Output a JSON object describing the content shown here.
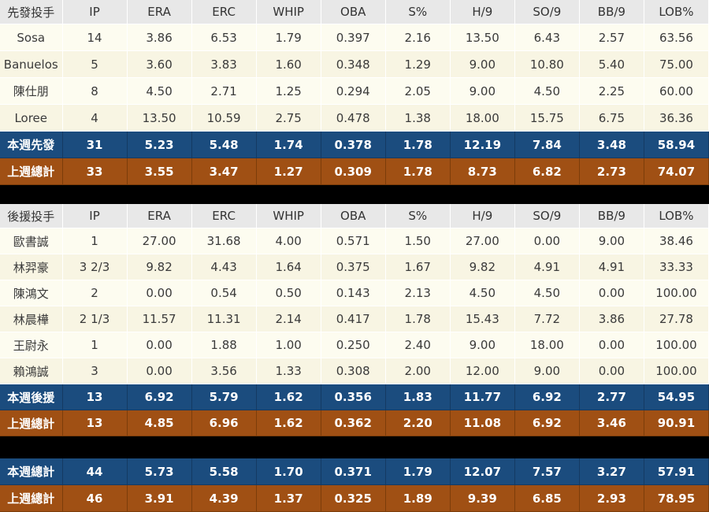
{
  "colors": {
    "header_bg": "#E8E8E8",
    "player_row_bg": "#FDFCF0",
    "player_row_bg_alt": "#F8F5E3",
    "current_week_row_bg": "#1B4C7E",
    "previous_week_row_bg": "#A05014",
    "separator_band": "#000000",
    "text_dark": "#3A3A3A",
    "text_light": "#FFFFFF"
  },
  "chart_data": [
    {
      "type": "table",
      "title": "先發投手",
      "columns": [
        "IP",
        "ERA",
        "ERC",
        "WHIP",
        "OBA",
        "S%",
        "H/9",
        "SO/9",
        "BB/9",
        "LOB%"
      ],
      "legend_position": "none",
      "grid": true,
      "rows": [
        {
          "type": "player",
          "label": "Sosa",
          "values": [
            "14",
            "3.86",
            "6.53",
            "1.79",
            "0.397",
            "2.16",
            "13.50",
            "6.43",
            "2.57",
            "63.56"
          ]
        },
        {
          "type": "player",
          "label": "Banuelos",
          "values": [
            "5",
            "3.60",
            "3.83",
            "1.60",
            "0.348",
            "1.29",
            "9.00",
            "10.80",
            "5.40",
            "75.00"
          ]
        },
        {
          "type": "player",
          "label": "陳仕朋",
          "values": [
            "8",
            "4.50",
            "2.71",
            "1.25",
            "0.294",
            "2.05",
            "9.00",
            "4.50",
            "2.25",
            "60.00"
          ]
        },
        {
          "type": "player",
          "label": "Loree",
          "values": [
            "4",
            "13.50",
            "10.59",
            "2.75",
            "0.478",
            "1.38",
            "18.00",
            "15.75",
            "6.75",
            "36.36"
          ]
        },
        {
          "type": "current_week_total",
          "label": "本週先發",
          "values": [
            "31",
            "5.23",
            "5.48",
            "1.74",
            "0.378",
            "1.78",
            "12.19",
            "7.84",
            "3.48",
            "58.94"
          ]
        },
        {
          "type": "previous_week_total",
          "label": "上週總計",
          "values": [
            "33",
            "3.55",
            "3.47",
            "1.27",
            "0.309",
            "1.78",
            "8.73",
            "6.82",
            "2.73",
            "74.07"
          ]
        }
      ]
    },
    {
      "type": "table",
      "title": "後援投手",
      "columns": [
        "IP",
        "ERA",
        "ERC",
        "WHIP",
        "OBA",
        "S%",
        "H/9",
        "SO/9",
        "BB/9",
        "LOB%"
      ],
      "legend_position": "none",
      "grid": true,
      "rows": [
        {
          "type": "player",
          "label": "歐書誠",
          "values": [
            "1",
            "27.00",
            "31.68",
            "4.00",
            "0.571",
            "1.50",
            "27.00",
            "0.00",
            "9.00",
            "38.46"
          ]
        },
        {
          "type": "player",
          "label": "林羿豪",
          "values": [
            "3 2/3",
            "9.82",
            "4.43",
            "1.64",
            "0.375",
            "1.67",
            "9.82",
            "4.91",
            "4.91",
            "33.33"
          ]
        },
        {
          "type": "player",
          "label": "陳鴻文",
          "values": [
            "2",
            "0.00",
            "0.54",
            "0.50",
            "0.143",
            "2.13",
            "4.50",
            "4.50",
            "0.00",
            "100.00"
          ]
        },
        {
          "type": "player",
          "label": "林晨樺",
          "values": [
            "2 1/3",
            "11.57",
            "11.31",
            "2.14",
            "0.417",
            "1.78",
            "15.43",
            "7.72",
            "3.86",
            "27.78"
          ]
        },
        {
          "type": "player",
          "label": "王尉永",
          "values": [
            "1",
            "0.00",
            "1.88",
            "1.00",
            "0.250",
            "2.40",
            "9.00",
            "18.00",
            "0.00",
            "100.00"
          ]
        },
        {
          "type": "player",
          "label": "賴鴻誠",
          "values": [
            "3",
            "0.00",
            "3.56",
            "1.33",
            "0.308",
            "2.00",
            "12.00",
            "9.00",
            "0.00",
            "100.00"
          ]
        },
        {
          "type": "current_week_total",
          "label": "本週後援",
          "values": [
            "13",
            "6.92",
            "5.79",
            "1.62",
            "0.356",
            "1.83",
            "11.77",
            "6.92",
            "2.77",
            "54.95"
          ]
        },
        {
          "type": "previous_week_total",
          "label": "上週總計",
          "values": [
            "13",
            "4.85",
            "6.96",
            "1.62",
            "0.362",
            "2.20",
            "11.08",
            "6.92",
            "3.46",
            "90.91"
          ]
        }
      ]
    },
    {
      "type": "table",
      "title": null,
      "columns": [
        "IP",
        "ERA",
        "ERC",
        "WHIP",
        "OBA",
        "S%",
        "H/9",
        "SO/9",
        "BB/9",
        "LOB%"
      ],
      "legend_position": "none",
      "grid": true,
      "rows": [
        {
          "type": "current_week_total",
          "label": "本週總計",
          "values": [
            "44",
            "5.73",
            "5.58",
            "1.70",
            "0.371",
            "1.79",
            "12.07",
            "7.57",
            "3.27",
            "57.91"
          ]
        },
        {
          "type": "previous_week_total",
          "label": "上週總計",
          "values": [
            "46",
            "3.91",
            "4.39",
            "1.37",
            "0.325",
            "1.89",
            "9.39",
            "6.85",
            "2.93",
            "78.95"
          ]
        }
      ]
    }
  ]
}
